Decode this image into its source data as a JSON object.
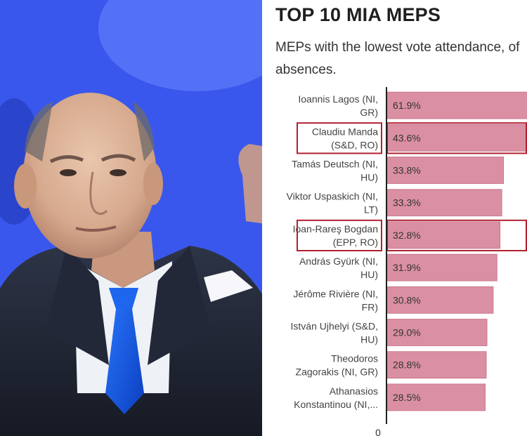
{
  "colors": {
    "bar": "#da8fa2",
    "bar_stroke": "#c77189",
    "highlight_box": "#b12030",
    "axis": "#222222",
    "photo_bg": "#3d5df2"
  },
  "chart_data": {
    "type": "bar",
    "orientation": "horizontal",
    "title": "TOP 10 MIA MEPS",
    "subtitle": "MEPs with the lowest vote attendance, of absences.",
    "categories": [
      [
        "Ioannis Lagos (NI,",
        "GR)"
      ],
      [
        "Claudiu Manda",
        "(S&D, RO)"
      ],
      [
        "Tamás Deutsch (NI,",
        "HU)"
      ],
      [
        "Viktor Uspaskich (NI,",
        "LT)"
      ],
      [
        "Ioan-Rareş Bogdan",
        "(EPP, RO)"
      ],
      [
        "András Gyürk (NI,",
        "HU)"
      ],
      [
        "Jérôme Rivière (NI,",
        "FR)"
      ],
      [
        "István Ujhelyi (S&D,",
        "HU)"
      ],
      [
        "Theodoros",
        "Zagorakis (NI, GR)"
      ],
      [
        "Athanasios",
        "Konstantinou (NI,..."
      ]
    ],
    "values": [
      61.9,
      43.6,
      33.8,
      33.3,
      32.8,
      31.9,
      30.8,
      29.0,
      28.8,
      28.5
    ],
    "value_labels": [
      "61.9%",
      "43.6%",
      "33.8%",
      "33.3%",
      "32.8%",
      "31.9%",
      "30.8%",
      "29.0%",
      "28.8%",
      "28.5%"
    ],
    "highlighted": [
      1,
      4
    ],
    "xlim": [
      0,
      45
    ],
    "x_tick_labels": [
      "0"
    ],
    "xlabel": "",
    "ylabel": "",
    "grid": false
  }
}
